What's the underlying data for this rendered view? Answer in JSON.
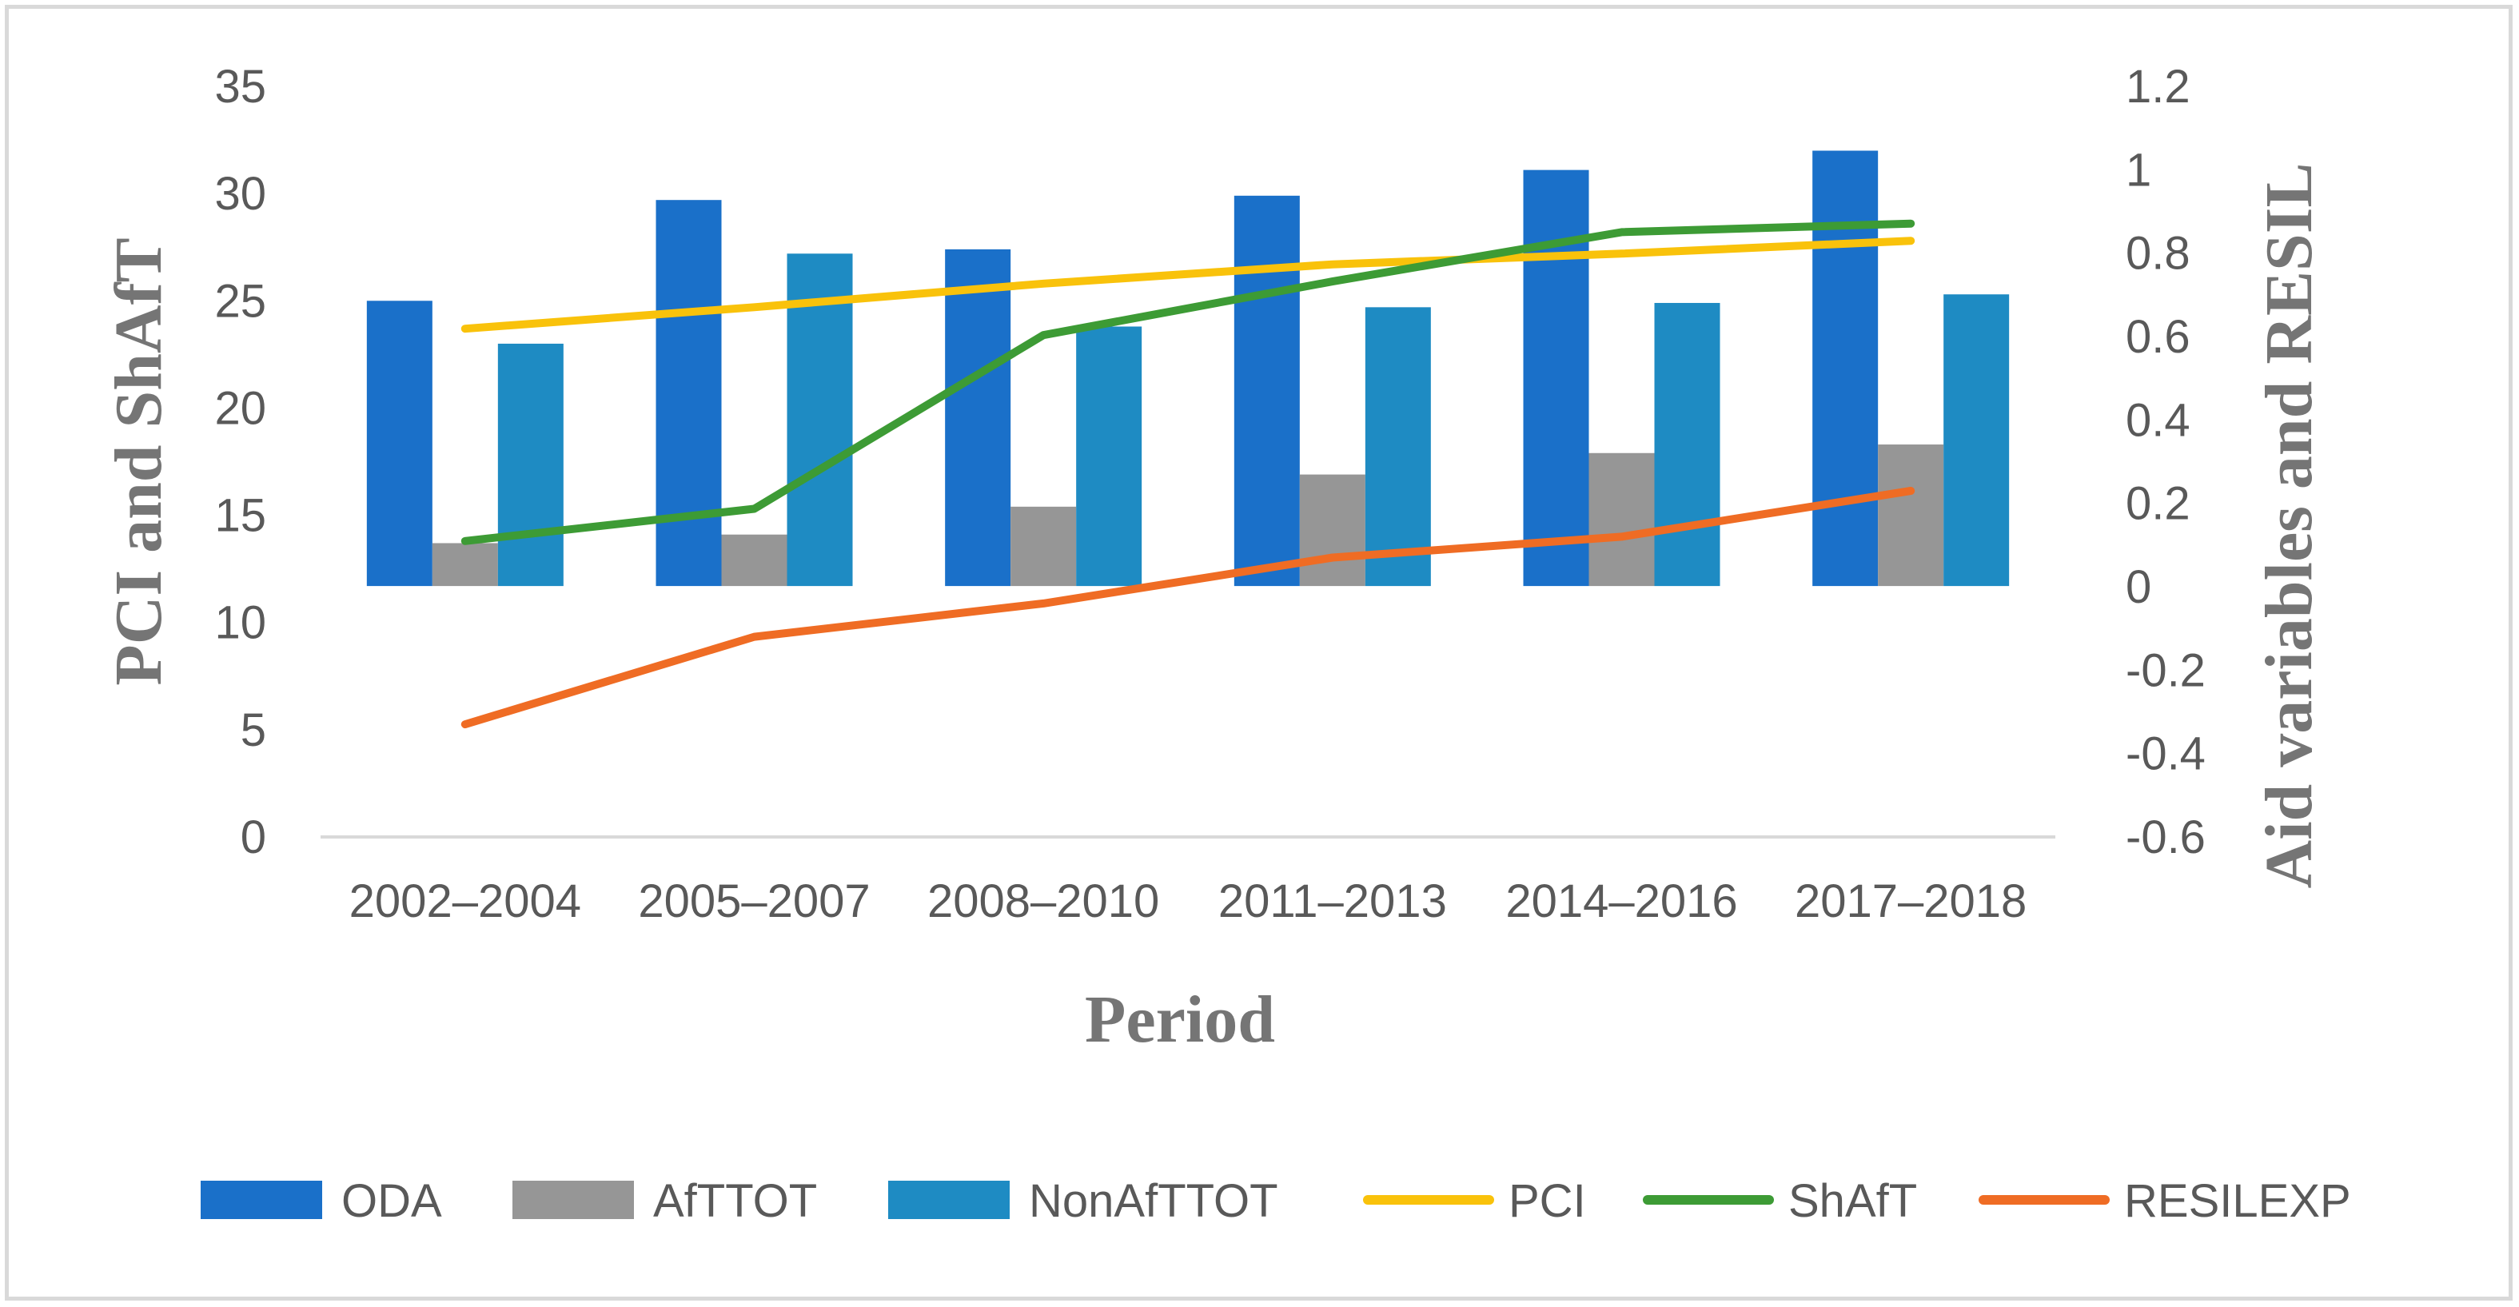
{
  "chart_data": {
    "type": "bar",
    "categories": [
      "2002–2004",
      "2005–2007",
      "2008–2010",
      "2011–2013",
      "2014–2016",
      "2017–2018"
    ],
    "bar_series": [
      {
        "name": "ODA",
        "color": "#1a70c9",
        "axis": "left",
        "values": [
          25.0,
          29.7,
          27.4,
          29.9,
          31.1,
          32.0
        ]
      },
      {
        "name": "AfTTOT",
        "color": "#969696",
        "axis": "left",
        "values": [
          13.7,
          14.1,
          15.4,
          16.9,
          17.9,
          18.3
        ]
      },
      {
        "name": "NonAfTTOT",
        "color": "#1e8bc3",
        "axis": "left",
        "values": [
          23.0,
          27.2,
          23.8,
          24.7,
          24.9,
          25.3
        ]
      }
    ],
    "line_series": [
      {
        "name": "PCI",
        "color": "#f9c20b",
        "axis": "left",
        "values": [
          23.7,
          24.7,
          25.8,
          26.7,
          27.2,
          27.8
        ]
      },
      {
        "name": "ShAfT",
        "color": "#3d9b35",
        "axis": "left",
        "values": [
          13.8,
          15.3,
          23.4,
          25.9,
          28.2,
          28.6
        ]
      },
      {
        "name": "RESILEXP",
        "color": "#ef6c24",
        "axis": "right",
        "values": [
          -0.33,
          -0.12,
          -0.04,
          0.07,
          0.12,
          0.23
        ]
      }
    ],
    "bar_baseline": 11.7,
    "y_left": {
      "min": 0,
      "max": 35,
      "step": 5,
      "label": "PCI and ShAfT",
      "ticks": [
        "0",
        "5",
        "10",
        "15",
        "20",
        "25",
        "30",
        "35"
      ]
    },
    "y_right": {
      "min": -0.6,
      "max": 1.2,
      "step": 0.2,
      "label": "Aid variables and RESIL",
      "ticks": [
        "-0.6",
        "-0.4",
        "-0.2",
        "0",
        "0.2",
        "0.4",
        "0.6",
        "0.8",
        "1",
        "1.2"
      ]
    },
    "xlabel": "Period",
    "legend": [
      "ODA",
      "AfTTOT",
      "NonAfTTOT",
      "PCI",
      "ShAfT",
      "RESILEXP"
    ],
    "legend_position": "bottom",
    "grid": false
  }
}
